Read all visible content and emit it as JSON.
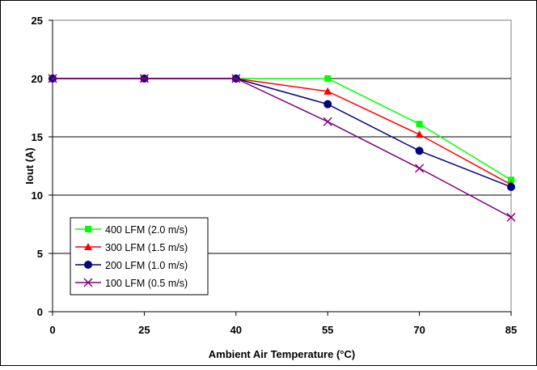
{
  "chart_data": {
    "type": "line",
    "title": "",
    "xlabel": "Ambient Air Temperature (°C)",
    "ylabel": "Iout (A)",
    "x_ticks": [
      "0",
      "25",
      "40",
      "55",
      "70",
      "85"
    ],
    "y_ticks": [
      "0",
      "5",
      "10",
      "15",
      "20",
      "25"
    ],
    "x": [
      0,
      25,
      40,
      55,
      70,
      85
    ],
    "ylim": [
      0,
      25
    ],
    "grid": "horizontal",
    "legend_position": "bottom-left",
    "series": [
      {
        "name": "400 LFM (2.0 m/s)",
        "color": "#00ff00",
        "marker": "square",
        "values": [
          20,
          20,
          20,
          20,
          16.1,
          11.3
        ]
      },
      {
        "name": "300 LFM (1.5 m/s)",
        "color": "#ff0000",
        "marker": "triangle",
        "values": [
          20,
          20,
          20,
          18.9,
          15.2,
          10.9
        ]
      },
      {
        "name": "200 LFM (1.0 m/s)",
        "color": "#000080",
        "marker": "circle",
        "values": [
          20,
          20,
          20,
          17.8,
          13.8,
          10.7
        ]
      },
      {
        "name": "100 LFM (0.5 m/s)",
        "color": "#800080",
        "marker": "x",
        "values": [
          20,
          20,
          20,
          16.3,
          12.3,
          8.1
        ]
      }
    ]
  }
}
